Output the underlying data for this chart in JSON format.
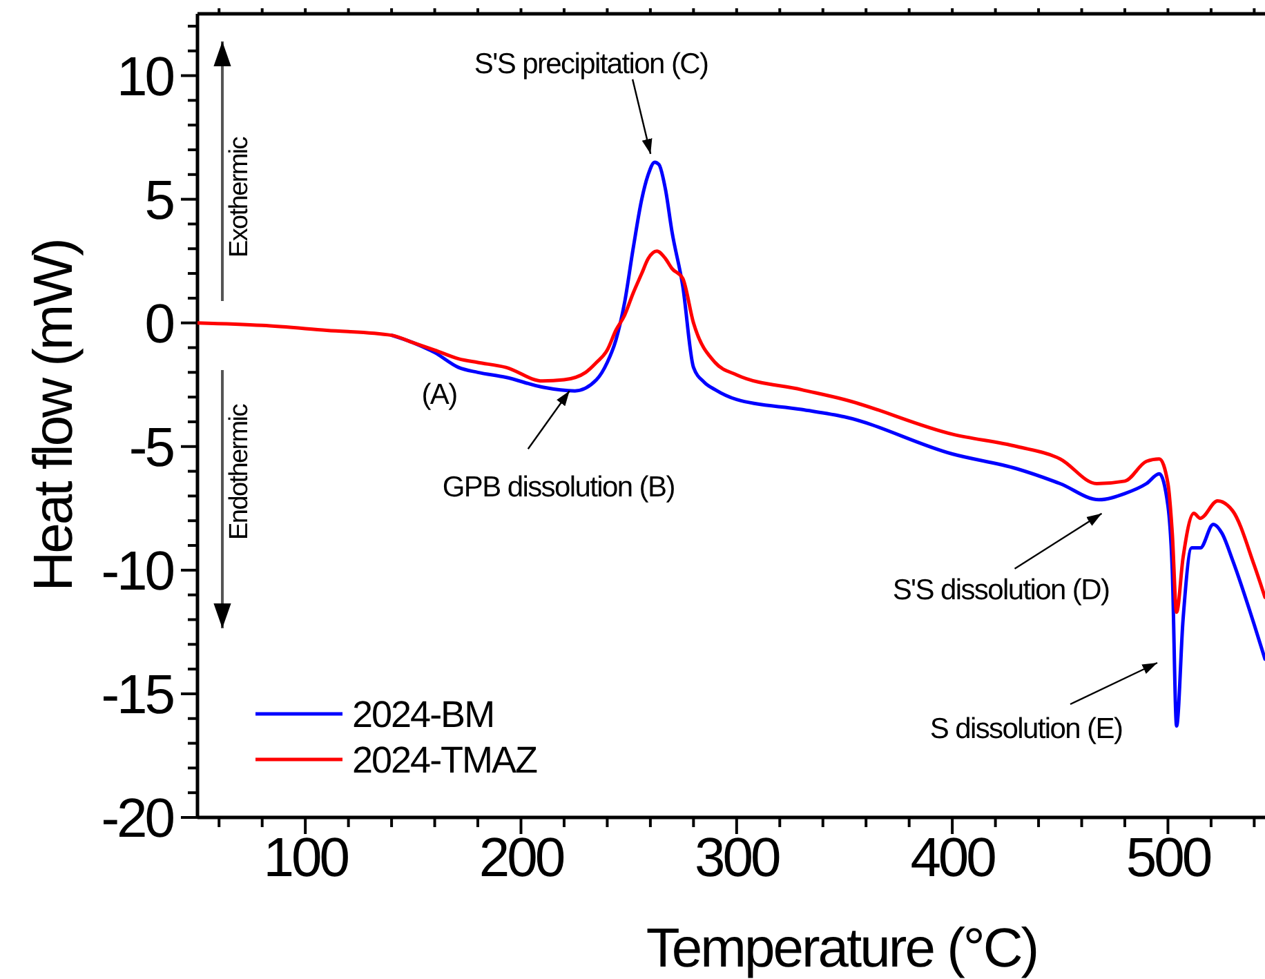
{
  "chart_data": {
    "type": "line",
    "xlabel": "Temperature (°C)",
    "ylabel": "Heat flow (mW)",
    "xlim": [
      50,
      545
    ],
    "ylim": [
      -20,
      12.5
    ],
    "xticks": [
      {
        "value": 60,
        "label": null
      },
      {
        "value": 80,
        "label": null
      },
      100,
      {
        "value": 120,
        "label": null
      },
      {
        "value": 140,
        "label": null
      },
      {
        "value": 160,
        "label": null
      },
      {
        "value": 180,
        "label": null
      },
      200,
      {
        "value": 220,
        "label": null
      },
      {
        "value": 240,
        "label": null
      },
      {
        "value": 260,
        "label": null
      },
      {
        "value": 280,
        "label": null
      },
      300,
      {
        "value": 320,
        "label": null
      },
      {
        "value": 340,
        "label": null
      },
      {
        "value": 360,
        "label": null
      },
      {
        "value": 380,
        "label": null
      },
      400,
      {
        "value": 420,
        "label": null
      },
      {
        "value": 440,
        "label": null
      },
      {
        "value": 460,
        "label": null
      },
      {
        "value": 480,
        "label": null
      },
      500,
      {
        "value": 520,
        "label": null
      },
      {
        "value": 540,
        "label": null
      }
    ],
    "yticks": [
      -20,
      {
        "value": -19,
        "label": null
      },
      {
        "value": -18,
        "label": null
      },
      {
        "value": -17,
        "label": null
      },
      {
        "value": -16,
        "label": null
      },
      -15,
      {
        "value": -14,
        "label": null
      },
      {
        "value": -13,
        "label": null
      },
      {
        "value": -12,
        "label": null
      },
      {
        "value": -11,
        "label": null
      },
      -10,
      {
        "value": -9,
        "label": null
      },
      {
        "value": -8,
        "label": null
      },
      {
        "value": -7,
        "label": null
      },
      {
        "value": -6,
        "label": null
      },
      -5,
      {
        "value": -4,
        "label": null
      },
      {
        "value": -3,
        "label": null
      },
      {
        "value": -2,
        "label": null
      },
      {
        "value": -1,
        "label": null
      },
      0,
      {
        "value": 1,
        "label": null
      },
      {
        "value": 2,
        "label": null
      },
      {
        "value": 3,
        "label": null
      },
      {
        "value": 4,
        "label": null
      },
      5,
      {
        "value": 6,
        "label": null
      },
      {
        "value": 7,
        "label": null
      },
      {
        "value": 8,
        "label": null
      },
      {
        "value": 9,
        "label": null
      },
      10,
      {
        "value": 11,
        "label": null
      },
      {
        "value": 12,
        "label": null
      }
    ],
    "legend": "bottom left",
    "marker": "none",
    "line_style": "solid",
    "series": [
      {
        "name": "2024-BM",
        "color": "#0000ff",
        "x": [
          140,
          150,
          160,
          171,
          180,
          193,
          210,
          225,
          235,
          240,
          244,
          248,
          252,
          256,
          259,
          262,
          264,
          267,
          270,
          275,
          280,
          285,
          290,
          300,
          330,
          350,
          400,
          430,
          450,
          468,
          480,
          490,
          496,
          500,
          502,
          504,
          507,
          511,
          515,
          521,
          525,
          530,
          540,
          545
        ],
        "values": [
          -0.5,
          -0.8,
          -1.2,
          -1.8,
          -2.0,
          -2.2,
          -2.6,
          -2.75,
          -2.3,
          -1.6,
          -0.7,
          0.8,
          3.0,
          5.0,
          6.0,
          6.5,
          6.4,
          5.4,
          3.7,
          1.5,
          -1.8,
          -2.4,
          -2.7,
          -3.1,
          -3.5,
          -3.8,
          -5.3,
          -5.9,
          -6.5,
          -7.15,
          -6.9,
          -6.5,
          -6.1,
          -7.4,
          -10,
          -16.3,
          -12,
          -9.1,
          -9.1,
          -8.15,
          -8.5,
          -9.6,
          -12.2,
          -13.6
        ]
      },
      {
        "name": "2024-TMAZ",
        "color": "#ff0000",
        "x": [
          50,
          80,
          110,
          140,
          150,
          160,
          171,
          180,
          193,
          210,
          220,
          230,
          235,
          240,
          244,
          248,
          252,
          256,
          259,
          263,
          267,
          270,
          275,
          280,
          290,
          300,
          330,
          350,
          400,
          430,
          450,
          467,
          480,
          490,
          496,
          500,
          502,
          504,
          507,
          512,
          515,
          523,
          530,
          540,
          545
        ],
        "values": [
          0,
          -0.1,
          -0.3,
          -0.5,
          -0.8,
          -1.1,
          -1.45,
          -1.6,
          -1.8,
          -2.35,
          -2.3,
          -2.0,
          -1.6,
          -1.1,
          -0.3,
          0.3,
          1.2,
          2.0,
          2.6,
          2.9,
          2.6,
          2.2,
          1.8,
          0,
          -1.6,
          -2.1,
          -2.7,
          -3.1,
          -4.5,
          -5.0,
          -5.5,
          -6.5,
          -6.4,
          -5.6,
          -5.5,
          -6.5,
          -8.5,
          -11.7,
          -9.5,
          -7.7,
          -7.9,
          -7.2,
          -7.6,
          -9.8,
          -11.1
        ]
      }
    ],
    "annotations": [
      {
        "text": "S'S precipitation (C)",
        "x": 262,
        "y": 6.5
      },
      {
        "text": "GPB dissolution (B)",
        "x": 222.5,
        "y": -2.75
      },
      "(A)",
      {
        "text": "S'S dissolution (D)",
        "x": 468,
        "y": -7.15
      },
      "S dissolution (E)",
      "Exothermic",
      "Endothermic"
    ]
  }
}
